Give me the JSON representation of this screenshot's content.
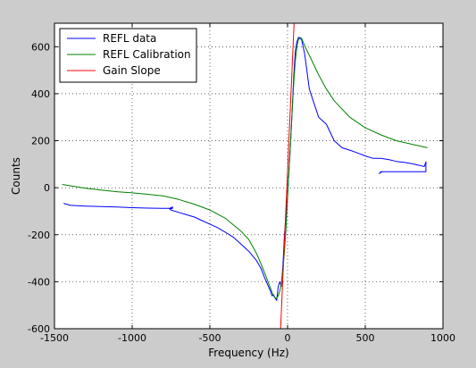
{
  "chart_data": {
    "type": "line",
    "xlabel": "Frequency (Hz)",
    "ylabel": "Counts",
    "xlim": [
      -1500,
      1000
    ],
    "ylim": [
      -600,
      700
    ],
    "grid": true,
    "legend_position": "top-left",
    "xticks": [
      "-1500",
      "-1000",
      "-500",
      "0",
      "500",
      "1000"
    ],
    "yticks": [
      "-600",
      "-400",
      "-200",
      "0",
      "200",
      "400",
      "600"
    ],
    "xtick_values": [
      -1500,
      -1000,
      -500,
      0,
      500,
      1000
    ],
    "ytick_values": [
      -600,
      -400,
      -200,
      0,
      200,
      400,
      600
    ],
    "series": [
      {
        "name": "REFL data",
        "color": "#0000ff",
        "x": [
          -1440,
          -1430,
          -1420,
          -1400,
          -1300,
          -1200,
          -1100,
          -1000,
          -900,
          -800,
          -760,
          -740,
          -740,
          -760,
          -750,
          -700,
          -650,
          -600,
          -550,
          -500,
          -450,
          -400,
          -350,
          -300,
          -250,
          -200,
          -170,
          -150,
          -130,
          -110,
          -100,
          -90,
          -80,
          -70,
          -60,
          -50,
          -40,
          -30,
          -20,
          -10,
          0,
          10,
          20,
          30,
          40,
          50,
          60,
          70,
          80,
          90,
          100,
          110,
          120,
          130,
          140,
          160,
          180,
          200,
          250,
          300,
          350,
          400,
          450,
          500,
          550,
          600,
          650,
          700,
          750,
          800,
          850,
          880,
          890,
          890,
          880,
          600,
          590,
          592,
          600,
          610
        ],
        "y": [
          -65,
          -70,
          -70,
          -75,
          -78,
          -80,
          -82,
          -85,
          -87,
          -88,
          -88,
          -82,
          -88,
          -90,
          -95,
          -105,
          -115,
          -125,
          -140,
          -155,
          -170,
          -190,
          -210,
          -240,
          -270,
          -310,
          -345,
          -380,
          -410,
          -440,
          -460,
          -455,
          -470,
          -480,
          -420,
          -400,
          -420,
          -330,
          -200,
          -120,
          -30,
          80,
          200,
          330,
          480,
          580,
          620,
          640,
          635,
          630,
          600,
          570,
          520,
          470,
          420,
          380,
          340,
          300,
          270,
          200,
          170,
          160,
          148,
          135,
          125,
          125,
          120,
          112,
          108,
          102,
          95,
          90,
          110,
          68,
          68,
          68,
          60,
          62,
          65,
          68
        ]
      },
      {
        "name": "REFL Calibration",
        "color": "#008000",
        "x": [
          -1450,
          -1300,
          -1200,
          -1100,
          -1000,
          -900,
          -800,
          -700,
          -600,
          -500,
          -400,
          -300,
          -250,
          -200,
          -170,
          -140,
          -120,
          -100,
          -90,
          -80,
          -70,
          -60,
          -50,
          -40,
          -30,
          -20,
          -10,
          0,
          10,
          20,
          30,
          40,
          50,
          60,
          70,
          80,
          90,
          100,
          120,
          150,
          200,
          250,
          300,
          400,
          500,
          600,
          700,
          800,
          900
        ],
        "y": [
          14,
          -2,
          -10,
          -17,
          -22,
          -28,
          -35,
          -50,
          -70,
          -95,
          -130,
          -185,
          -220,
          -280,
          -325,
          -375,
          -410,
          -445,
          -460,
          -470,
          -470,
          -460,
          -440,
          -410,
          -350,
          -270,
          -170,
          -40,
          80,
          200,
          330,
          450,
          540,
          600,
          630,
          640,
          635,
          620,
          590,
          550,
          480,
          420,
          370,
          300,
          255,
          225,
          200,
          185,
          170
        ]
      },
      {
        "name": "Gain Slope",
        "color": "#ff0000",
        "x": [
          -45,
          42
        ],
        "y": [
          -600,
          700
        ]
      }
    ]
  }
}
